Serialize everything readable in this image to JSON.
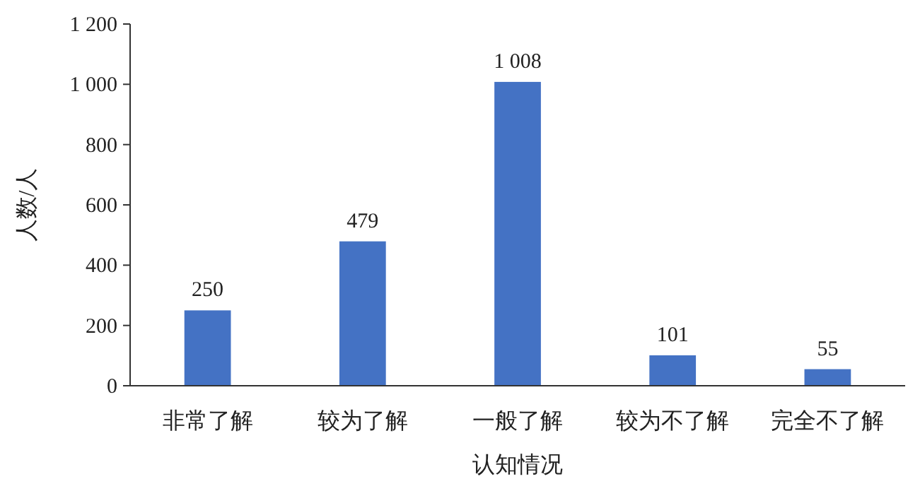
{
  "chart_data": {
    "type": "bar",
    "xlabel": "认知情况",
    "ylabel": "人数/人",
    "categories": [
      "非常了解",
      "较为了解",
      "一般了解",
      "较为不了解",
      "完全不了解"
    ],
    "values": [
      250,
      479,
      1008,
      101,
      55
    ],
    "value_labels": [
      "250",
      "479",
      "1 008",
      "101",
      "55"
    ],
    "color": "#4472c4",
    "ylim": [
      0,
      1200
    ],
    "yticks": [
      0,
      200,
      400,
      600,
      800,
      {
        "value": 1000,
        "label": "1 000"
      },
      {
        "value": 1200,
        "label": "1 200"
      }
    ],
    "grid": false
  }
}
